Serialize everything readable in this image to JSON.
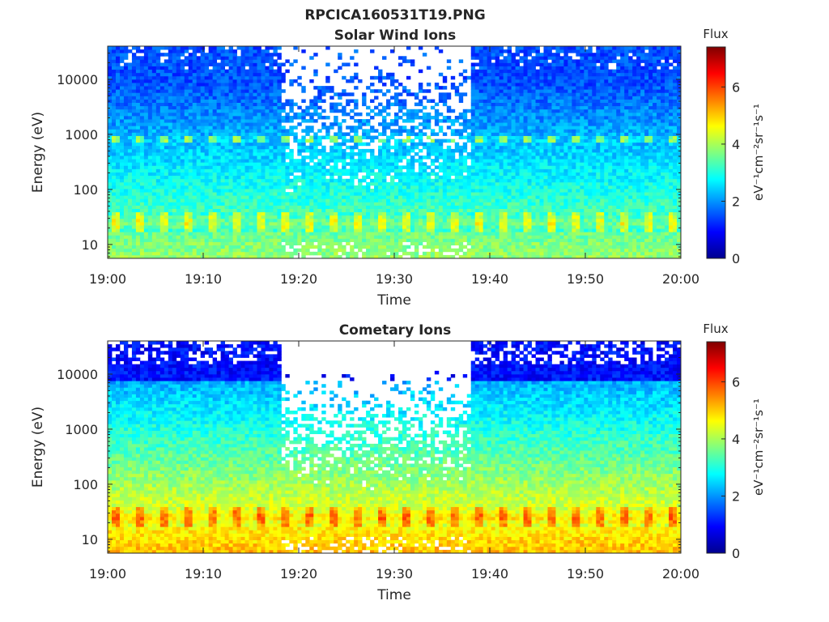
{
  "figure": {
    "title": "RPCICA160531T19.PNG"
  },
  "chart_data": [
    {
      "type": "heatmap",
      "title": "Solar Wind Ions",
      "xlabel": "Time",
      "ylabel": "Energy (eV)",
      "x_ticks": [
        "19:00",
        "19:10",
        "19:20",
        "19:30",
        "19:40",
        "19:50",
        "20:00"
      ],
      "xlim": [
        "19:00",
        "20:00"
      ],
      "y_scale": "log",
      "y_ticks": [
        "10",
        "100",
        "1000",
        "10000"
      ],
      "ylim": [
        5.6,
        40000
      ],
      "grid": false,
      "colorbar": {
        "label": "Flux",
        "unit": "eV⁻¹cm⁻²sr⁻¹s⁻¹",
        "ticks": [
          "0",
          "2",
          "4",
          "6"
        ],
        "range": [
          0,
          7.4
        ],
        "colormap": "jet"
      },
      "features": [
        {
          "energy_eV": 25,
          "flux": 4.6
        },
        {
          "energy_eV": 800,
          "flux": 3.8
        },
        {
          "energy_eV": 10000,
          "flux": 1.5
        }
      ],
      "gap_period": [
        "19:18",
        "19:38"
      ]
    },
    {
      "type": "heatmap",
      "title": "Cometary Ions",
      "xlabel": "Time",
      "ylabel": "Energy (eV)",
      "x_ticks": [
        "19:00",
        "19:10",
        "19:20",
        "19:30",
        "19:40",
        "19:50",
        "20:00"
      ],
      "xlim": [
        "19:00",
        "20:00"
      ],
      "y_scale": "log",
      "y_ticks": [
        "10",
        "100",
        "1000",
        "10000"
      ],
      "ylim": [
        5.6,
        40000
      ],
      "grid": false,
      "colorbar": {
        "label": "Flux",
        "unit": "eV⁻¹cm⁻²sr⁻¹s⁻¹",
        "ticks": [
          "0",
          "2",
          "4",
          "6"
        ],
        "range": [
          0,
          7.4
        ],
        "colormap": "jet"
      },
      "features": [
        {
          "energy_eV": 25,
          "flux": 5.8
        },
        {
          "energy_eV": 800,
          "flux": 2.4
        },
        {
          "energy_eV": 10000,
          "flux": 1.0
        }
      ],
      "gap_period": [
        "19:18",
        "19:38"
      ]
    }
  ]
}
